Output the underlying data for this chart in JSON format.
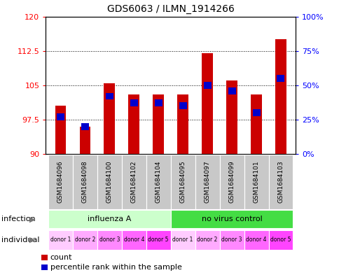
{
  "title": "GDS6063 / ILMN_1914266",
  "samples": [
    "GSM1684096",
    "GSM1684098",
    "GSM1684100",
    "GSM1684102",
    "GSM1684104",
    "GSM1684095",
    "GSM1684097",
    "GSM1684099",
    "GSM1684101",
    "GSM1684103"
  ],
  "count_values": [
    100.5,
    96.0,
    105.5,
    103.0,
    103.0,
    103.0,
    112.0,
    106.0,
    103.0,
    115.0
  ],
  "percentile_values": [
    27,
    20,
    42,
    37,
    37,
    35,
    50,
    46,
    30,
    55
  ],
  "ylim_left": [
    90,
    120
  ],
  "ylim_right": [
    0,
    100
  ],
  "yticks_left": [
    90,
    97.5,
    105,
    112.5,
    120
  ],
  "yticks_right": [
    0,
    25,
    50,
    75,
    100
  ],
  "ytick_labels_right": [
    "0%",
    "25%",
    "50%",
    "75%",
    "100%"
  ],
  "bar_color": "#cc0000",
  "blue_color": "#0000cc",
  "infection_groups": [
    {
      "label": "influenza A",
      "start": 0,
      "end": 5,
      "color": "#ccffcc"
    },
    {
      "label": "no virus control",
      "start": 5,
      "end": 10,
      "color": "#44dd44"
    }
  ],
  "individual_labels": [
    "donor 1",
    "donor 2",
    "donor 3",
    "donor 4",
    "donor 5",
    "donor 1",
    "donor 2",
    "donor 3",
    "donor 4",
    "donor 5"
  ],
  "individual_colors": [
    "#ffccff",
    "#ffaaff",
    "#ff88ff",
    "#ff66ff",
    "#ff44ff",
    "#ffccff",
    "#ffaaff",
    "#ff88ff",
    "#ff66ff",
    "#ff44ff"
  ],
  "sample_box_color": "#c8c8c8",
  "infection_label": "infection",
  "individual_label_row": "individual",
  "legend_count": "count",
  "legend_percentile": "percentile rank within the sample",
  "plot_bg_color": "#ffffff",
  "title_fontsize": 10,
  "tick_fontsize": 8,
  "bar_width": 0.45
}
